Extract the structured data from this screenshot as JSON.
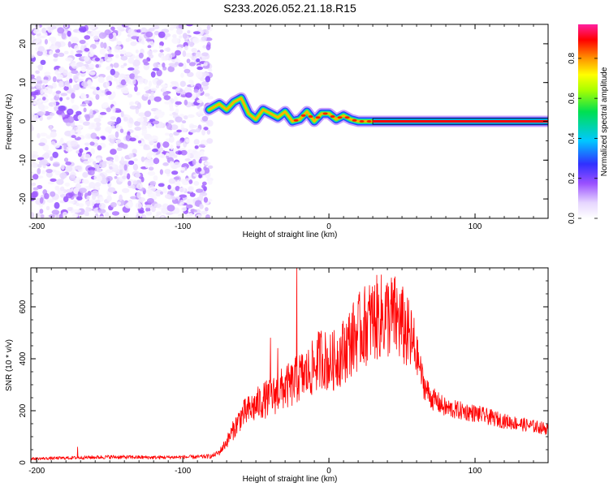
{
  "title": "S233.2026.052.21.18.R15",
  "chart_data": [
    {
      "type": "heatmap",
      "xlabel": "Height of straight line (km)",
      "ylabel": "Frequency (Hz)",
      "xlim": [
        -204,
        150
      ],
      "ylim": [
        -25,
        25
      ],
      "xticks": [
        -200,
        -100,
        0,
        100
      ],
      "xtick_labels": [
        "-200",
        "-100",
        "0",
        "100"
      ],
      "yticks": [
        -20,
        -10,
        0,
        10,
        20
      ],
      "ytick_labels": [
        "-20",
        "-10",
        "0",
        "10",
        "20"
      ],
      "colorbar": {
        "label": "Normalized spectral amplitude",
        "range": [
          0,
          0.97
        ],
        "ticks": [
          0,
          0.2,
          0.4,
          0.6,
          0.8
        ],
        "tick_labels": [
          "0.0",
          "0.2",
          "0.4",
          "0.6",
          "0.8"
        ],
        "colormap": "rainbow (white-purple-blue-cyan-green-yellow-orange-red-magenta)"
      },
      "regions": [
        {
          "x_range": [
            -204,
            -81
          ],
          "y_range": [
            -25,
            25
          ],
          "pattern": "random noise",
          "amplitude": [
            0.02,
            0.15
          ]
        },
        {
          "x_range": [
            -81,
            30
          ],
          "y_range": [
            -2,
            8
          ],
          "pattern": "wavy trace converging to 0 Hz",
          "amplitude": [
            0.15,
            0.85
          ]
        },
        {
          "x_range": [
            30,
            150
          ],
          "y_range": [
            -0.5,
            0.5
          ],
          "pattern": "steady line at 0 Hz",
          "amplitude": [
            0.8,
            0.9
          ]
        }
      ],
      "trace": {
        "x": [
          -82,
          -75,
          -70,
          -65,
          -60,
          -55,
          -50,
          -45,
          -40,
          -35,
          -30,
          -25,
          -20,
          -15,
          -10,
          -5,
          0,
          5,
          10,
          15,
          20,
          25,
          30,
          150
        ],
        "y": [
          3,
          4.5,
          3,
          5,
          6,
          2,
          0.5,
          3,
          2,
          1,
          2.5,
          0,
          0.5,
          2.5,
          0,
          2,
          2,
          0.5,
          1.5,
          0.5,
          0,
          0,
          0,
          0
        ]
      },
      "colors": {
        "trace_peak": "#ff0000",
        "band_border": "#000000"
      }
    },
    {
      "type": "line",
      "xlabel": "Height of straight line (km)",
      "ylabel": "SNR (10 * v/v)",
      "xlim": [
        -204,
        150
      ],
      "ylim": [
        0,
        750
      ],
      "xticks": [
        -200,
        -100,
        0,
        100
      ],
      "xtick_labels": [
        "-200",
        "-100",
        "0",
        "100"
      ],
      "yticks": [
        0,
        200,
        400,
        600
      ],
      "ytick_labels": [
        "0",
        "200",
        "400",
        "600"
      ],
      "series": [
        {
          "color": "#ff0000",
          "x": [
            -204,
            -180,
            -150,
            -120,
            -90,
            -80,
            -75,
            -70,
            -65,
            -60,
            -55,
            -50,
            -45,
            -40,
            -35,
            -30,
            -25,
            -22,
            -20,
            -15,
            -10,
            -5,
            0,
            5,
            10,
            15,
            20,
            25,
            30,
            35,
            40,
            45,
            50,
            55,
            60,
            65,
            70,
            80,
            90,
            100,
            120,
            140,
            150
          ],
          "y": [
            15,
            18,
            22,
            20,
            22,
            25,
            40,
            80,
            130,
            180,
            200,
            220,
            240,
            250,
            270,
            290,
            300,
            320,
            330,
            340,
            370,
            410,
            380,
            400,
            430,
            470,
            500,
            530,
            550,
            560,
            565,
            560,
            530,
            480,
            420,
            300,
            250,
            210,
            200,
            190,
            160,
            140,
            130
          ],
          "spikes": [
            {
              "x": -172,
              "y": 60
            },
            {
              "x": -40,
              "y": 480
            },
            {
              "x": -35,
              "y": 440
            },
            {
              "x": -22,
              "y": 750
            }
          ]
        }
      ]
    }
  ]
}
